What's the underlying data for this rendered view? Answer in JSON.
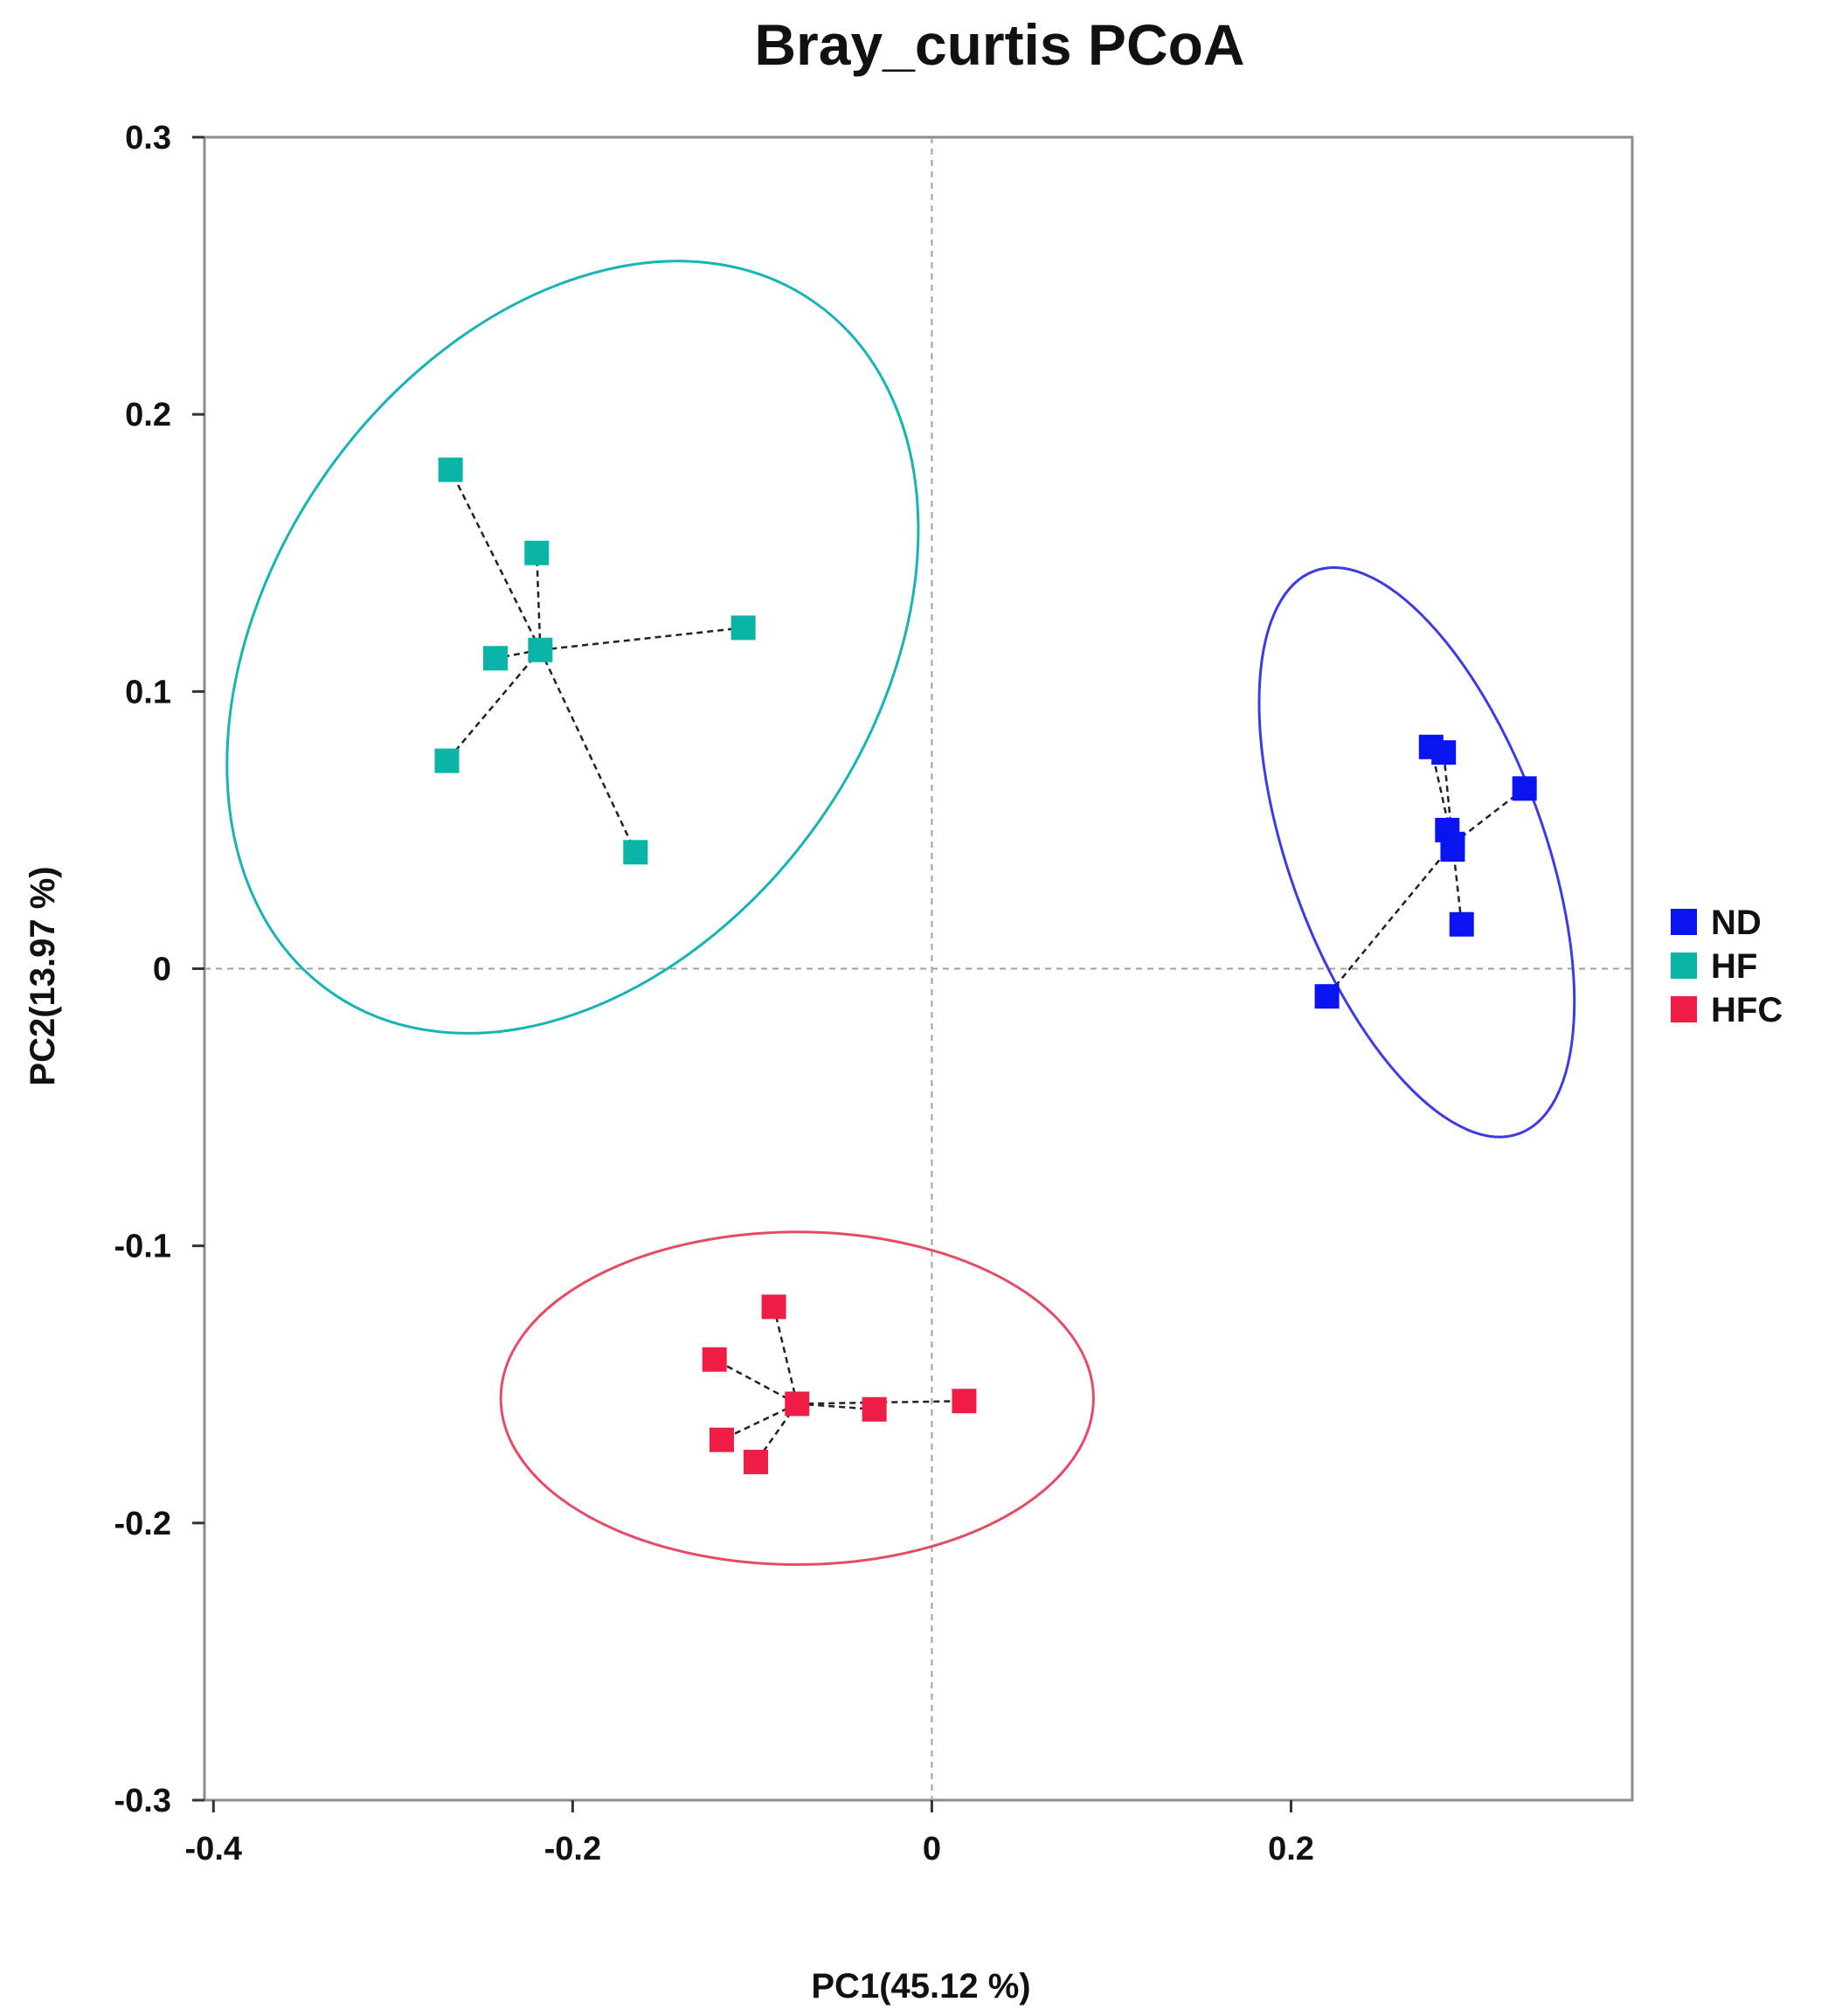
{
  "chart_data": {
    "type": "scatter",
    "title": "Bray_curtis PCoA",
    "xlabel": "PC1(45.12 %)",
    "ylabel": "PC2(13.97 %)",
    "xlim": [
      -0.405,
      0.39
    ],
    "ylim": [
      -0.3,
      0.3
    ],
    "xticks": [
      -0.4,
      -0.2,
      0,
      0.2
    ],
    "xtick_labels": [
      "-0.4",
      "-0.2",
      "0",
      "0.2"
    ],
    "yticks": [
      0.3,
      0.2,
      0.1,
      0,
      -0.1,
      -0.2,
      -0.3
    ],
    "ytick_labels": [
      "0.3",
      "0.2",
      "0.1",
      "0",
      "-0.1",
      "-0.2",
      "-0.3"
    ],
    "reference_lines": {
      "x": 0,
      "y": 0
    },
    "grid": false,
    "legend_position": "right",
    "series": [
      {
        "name": "ND",
        "color": "#0a14f0",
        "ellipse_color": "#3c3ce6",
        "centroid": [
          0.29,
          0.045
        ],
        "points": [
          [
            0.278,
            0.08
          ],
          [
            0.285,
            0.078
          ],
          [
            0.33,
            0.065
          ],
          [
            0.287,
            0.05
          ],
          [
            0.29,
            0.043
          ],
          [
            0.295,
            0.016
          ],
          [
            0.22,
            -0.01
          ]
        ],
        "ellipse": {
          "cx": 0.27,
          "cy": 0.042,
          "rx": 0.071,
          "ry": 0.108,
          "rotation_deg": -20
        }
      },
      {
        "name": "HF",
        "color": "#0ab4a6",
        "ellipse_color": "#16b4b4",
        "centroid": [
          -0.218,
          0.115
        ],
        "points": [
          [
            -0.268,
            0.18
          ],
          [
            -0.22,
            0.15
          ],
          [
            -0.105,
            0.123
          ],
          [
            -0.243,
            0.112
          ],
          [
            -0.27,
            0.075
          ],
          [
            -0.165,
            0.042
          ]
        ],
        "ellipse": {
          "cx": -0.2,
          "cy": 0.116,
          "rx": 0.168,
          "ry": 0.152,
          "rotation_deg": 35
        }
      },
      {
        "name": "HFC",
        "color": "#f01e46",
        "ellipse_color": "#e64b64",
        "centroid": [
          -0.075,
          -0.157
        ],
        "points": [
          [
            -0.088,
            -0.122
          ],
          [
            -0.121,
            -0.141
          ],
          [
            -0.032,
            -0.159
          ],
          [
            0.018,
            -0.156
          ],
          [
            -0.117,
            -0.17
          ],
          [
            -0.098,
            -0.178
          ]
        ],
        "ellipse": {
          "cx": -0.075,
          "cy": -0.155,
          "rx": 0.165,
          "ry": 0.06,
          "rotation_deg": 0
        }
      }
    ]
  }
}
